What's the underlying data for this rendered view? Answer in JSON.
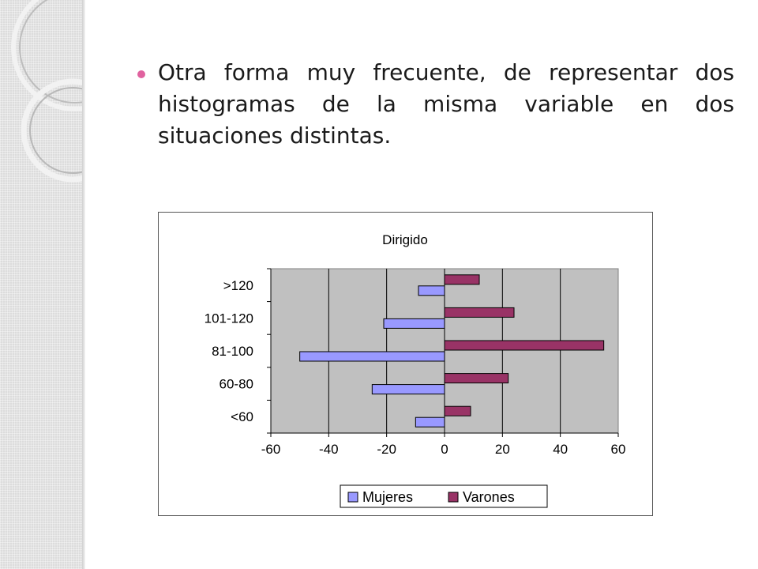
{
  "bullet": {
    "text": "Otra forma muy frecuente, de representar dos histogramas de la misma variable en dos situaciones distintas."
  },
  "colors": {
    "bullet": "#e0629f",
    "plot_bg": "#c0c0c0",
    "mujeres": "#9999ff",
    "varones": "#993366"
  },
  "chart_data": {
    "type": "bar",
    "orientation": "horizontal",
    "title": "Dirigido",
    "categories": [
      ">120",
      "101-120",
      "81-100",
      "60-80",
      "<60"
    ],
    "series": [
      {
        "name": "Mujeres",
        "values": [
          -9,
          -21,
          -50,
          -25,
          -10
        ]
      },
      {
        "name": "Varones",
        "values": [
          12,
          24,
          55,
          22,
          9
        ]
      }
    ],
    "xlim": [
      -60,
      60
    ],
    "xticks": [
      -60,
      -40,
      -20,
      0,
      20,
      40,
      60
    ],
    "grid": true,
    "legend_position": "bottom"
  }
}
